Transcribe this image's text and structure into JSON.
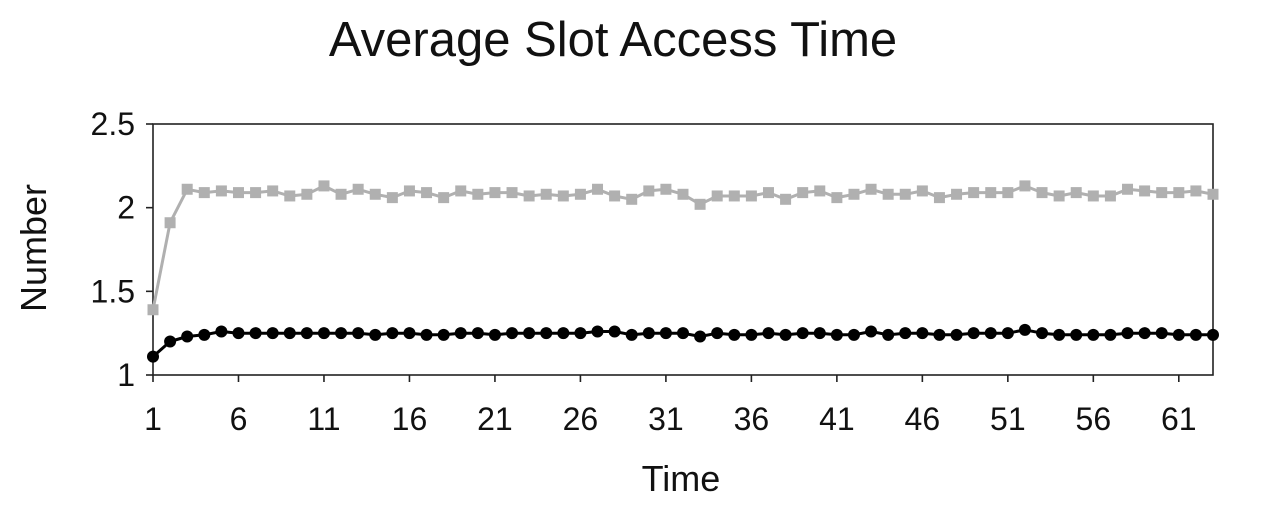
{
  "chart_data": {
    "type": "line",
    "title": "Average Slot Access Time",
    "xlabel": "Time",
    "ylabel": "Number",
    "x": [
      1,
      2,
      3,
      4,
      5,
      6,
      7,
      8,
      9,
      10,
      11,
      12,
      13,
      14,
      15,
      16,
      17,
      18,
      19,
      20,
      21,
      22,
      23,
      24,
      25,
      26,
      27,
      28,
      29,
      30,
      31,
      32,
      33,
      34,
      35,
      36,
      37,
      38,
      39,
      40,
      41,
      42,
      43,
      44,
      45,
      46,
      47,
      48,
      49,
      50,
      51,
      52,
      53,
      54,
      55,
      56,
      57,
      58,
      59,
      60,
      61,
      62,
      63
    ],
    "xticks": [
      1,
      6,
      11,
      16,
      21,
      26,
      31,
      36,
      41,
      46,
      51,
      56,
      61
    ],
    "xlim": [
      1,
      63
    ],
    "yticks": [
      1,
      1.5,
      2,
      2.5
    ],
    "ytick_labels": [
      "1",
      "1.5",
      "2",
      "2.5"
    ],
    "ylim": [
      1,
      2.5
    ],
    "grid": false,
    "series": [
      {
        "marker": "square",
        "color": "#b0b0b0",
        "values": [
          1.39,
          1.91,
          2.11,
          2.09,
          2.1,
          2.09,
          2.09,
          2.1,
          2.07,
          2.08,
          2.13,
          2.08,
          2.11,
          2.08,
          2.06,
          2.1,
          2.09,
          2.06,
          2.1,
          2.08,
          2.09,
          2.09,
          2.07,
          2.08,
          2.07,
          2.08,
          2.11,
          2.07,
          2.05,
          2.1,
          2.11,
          2.08,
          2.02,
          2.07,
          2.07,
          2.07,
          2.09,
          2.05,
          2.09,
          2.1,
          2.06,
          2.08,
          2.11,
          2.08,
          2.08,
          2.1,
          2.06,
          2.08,
          2.09,
          2.09,
          2.09,
          2.13,
          2.09,
          2.07,
          2.09,
          2.07,
          2.07,
          2.11,
          2.1,
          2.09,
          2.09,
          2.1,
          2.08
        ]
      },
      {
        "marker": "circle",
        "color": "#000000",
        "values": [
          1.11,
          1.2,
          1.23,
          1.24,
          1.26,
          1.25,
          1.25,
          1.25,
          1.25,
          1.25,
          1.25,
          1.25,
          1.25,
          1.24,
          1.25,
          1.25,
          1.24,
          1.24,
          1.25,
          1.25,
          1.24,
          1.25,
          1.25,
          1.25,
          1.25,
          1.25,
          1.26,
          1.26,
          1.24,
          1.25,
          1.25,
          1.25,
          1.23,
          1.25,
          1.24,
          1.24,
          1.25,
          1.24,
          1.25,
          1.25,
          1.24,
          1.24,
          1.26,
          1.24,
          1.25,
          1.25,
          1.24,
          1.24,
          1.25,
          1.25,
          1.25,
          1.27,
          1.25,
          1.24,
          1.24,
          1.24,
          1.24,
          1.25,
          1.25,
          1.25,
          1.24,
          1.24,
          1.24
        ]
      }
    ]
  }
}
